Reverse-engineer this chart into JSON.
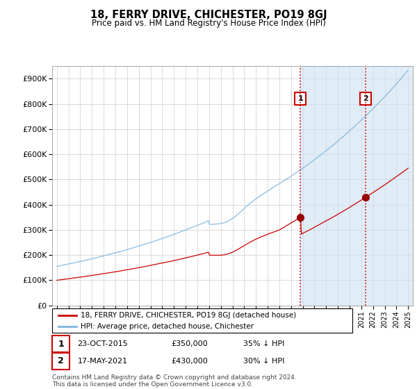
{
  "title": "18, FERRY DRIVE, CHICHESTER, PO19 8GJ",
  "subtitle": "Price paid vs. HM Land Registry's House Price Index (HPI)",
  "ylabel_ticks": [
    "£0",
    "£100K",
    "£200K",
    "£300K",
    "£400K",
    "£500K",
    "£600K",
    "£700K",
    "£800K",
    "£900K"
  ],
  "ytick_values": [
    0,
    100000,
    200000,
    300000,
    400000,
    500000,
    600000,
    700000,
    800000,
    900000
  ],
  "ylim": [
    0,
    950000
  ],
  "hpi_color": "#7ab5df",
  "price_color": "#cc0000",
  "marker1_year": 2015.8,
  "marker1_price": 350000,
  "marker2_year": 2021.38,
  "marker2_price": 430000,
  "vline_color": "#cc0000",
  "vline_style": ":",
  "shading_color": "#cce0f0",
  "legend_label_price": "18, FERRY DRIVE, CHICHESTER, PO19 8GJ (detached house)",
  "legend_label_hpi": "HPI: Average price, detached house, Chichester",
  "annotation1_label": "1",
  "annotation1_date": "23-OCT-2015",
  "annotation1_price": "£350,000",
  "annotation1_note": "35% ↓ HPI",
  "annotation2_label": "2",
  "annotation2_date": "17-MAY-2021",
  "annotation2_price": "£430,000",
  "annotation2_note": "30% ↓ HPI",
  "footer": "Contains HM Land Registry data © Crown copyright and database right 2024.\nThis data is licensed under the Open Government Licence v3.0.",
  "background_color": "#ffffff",
  "grid_color": "#cccccc",
  "xstart": 1995,
  "xend": 2025,
  "n_points": 360
}
